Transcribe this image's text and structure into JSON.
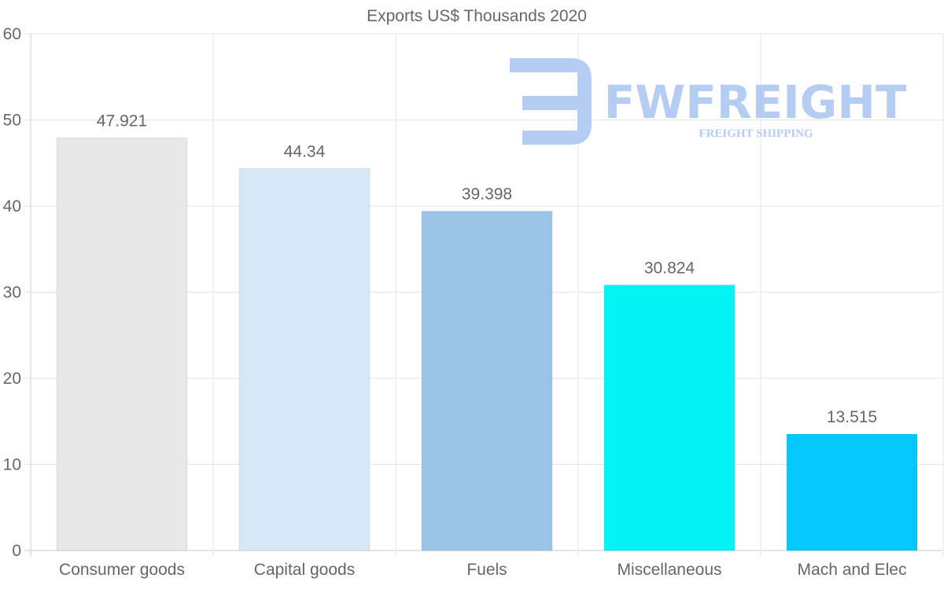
{
  "chart_data": {
    "type": "bar",
    "title": "Exports US$ Thousands 2020",
    "categories": [
      "Consumer goods",
      "Capital goods",
      "Fuels",
      "Miscellaneous",
      "Mach and Elec"
    ],
    "values": [
      47.921,
      44.34,
      39.398,
      30.824,
      13.515
    ],
    "value_labels": [
      "47.921",
      "44.34",
      "39.398",
      "30.824",
      "13.515"
    ],
    "bar_colors": [
      "#e8e8e8",
      "#d6e7f8",
      "#9cc4e8",
      "#04f4f6",
      "#04c8fc"
    ],
    "xlabel": "",
    "ylabel": "",
    "ylim": [
      0,
      60
    ],
    "yticks": [
      0,
      10,
      20,
      30,
      40,
      50,
      60
    ],
    "grid": true,
    "legend": "none"
  },
  "watermark": {
    "brand": "FWFREIGHT",
    "tagline": "FREIGHT SHIPPING",
    "color": "#a9c4f1"
  },
  "colors": {
    "grid": "#e6e6e6",
    "axis": "#cccccc",
    "text": "#666666"
  }
}
